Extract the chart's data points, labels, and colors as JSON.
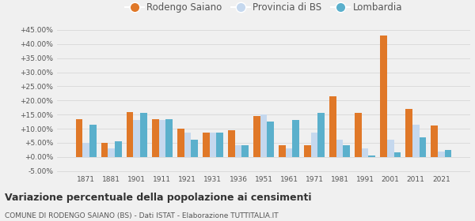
{
  "years": [
    1871,
    1881,
    1901,
    1911,
    1921,
    1931,
    1936,
    1951,
    1961,
    1971,
    1981,
    1991,
    2001,
    2011,
    2021
  ],
  "rodengo": [
    13.5,
    5.0,
    16.0,
    13.5,
    10.0,
    8.5,
    9.5,
    14.5,
    4.0,
    4.0,
    21.5,
    15.5,
    43.0,
    17.0,
    11.0
  ],
  "provincia": [
    5.0,
    3.0,
    13.0,
    13.0,
    8.5,
    8.5,
    4.0,
    15.0,
    3.0,
    8.5,
    6.0,
    3.0,
    6.0,
    11.5,
    2.0
  ],
  "lombardia": [
    11.5,
    5.5,
    15.5,
    13.5,
    6.0,
    8.5,
    4.0,
    12.5,
    13.0,
    15.5,
    4.0,
    0.5,
    1.5,
    7.0,
    2.5
  ],
  "color_rodengo": "#e07828",
  "color_provincia": "#c5d8ee",
  "color_lombardia": "#5bb0cc",
  "ylim_min": -5.5,
  "ylim_max": 47.0,
  "yticks": [
    -5.0,
    0.0,
    5.0,
    10.0,
    15.0,
    20.0,
    25.0,
    30.0,
    35.0,
    40.0,
    45.0
  ],
  "title": "Variazione percentuale della popolazione ai censimenti",
  "subtitle": "COMUNE DI RODENGO SAIANO (BS) - Dati ISTAT - Elaborazione TUTTITALIA.IT",
  "legend_labels": [
    "Rodengo Saiano",
    "Provincia di BS",
    "Lombardia"
  ],
  "bg_color": "#f0f0f0",
  "bar_width": 0.27,
  "grid_color": "#d8d8d8"
}
